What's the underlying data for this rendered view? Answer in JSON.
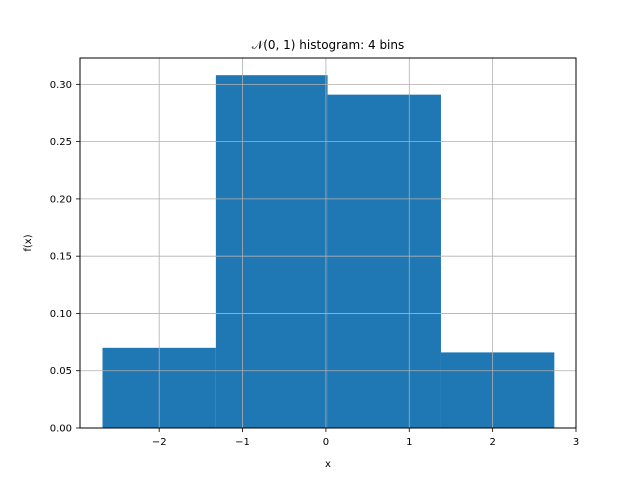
{
  "chart_data": {
    "type": "bar",
    "title": "𝒩(0, 1) histogram: 4 bins",
    "xlabel": "x",
    "ylabel": "f(x)",
    "bins": [
      {
        "x0": -2.68,
        "x1": -1.32,
        "value": 0.07
      },
      {
        "x0": -1.32,
        "x1": 0.02,
        "value": 0.308
      },
      {
        "x0": 0.02,
        "x1": 1.38,
        "value": 0.291
      },
      {
        "x0": 1.38,
        "x1": 2.74,
        "value": 0.066
      }
    ],
    "xlim": [
      -2.95,
      3.0
    ],
    "ylim": [
      0.0,
      0.323
    ],
    "xticks": [
      -2,
      -1,
      0,
      1,
      2,
      3
    ],
    "xtick_labels": [
      "−2",
      "−1",
      "0",
      "1",
      "2",
      "3"
    ],
    "yticks": [
      0.0,
      0.05,
      0.1,
      0.15,
      0.2,
      0.25,
      0.3
    ],
    "ytick_labels": [
      "0.00",
      "0.05",
      "0.10",
      "0.15",
      "0.20",
      "0.25",
      "0.30"
    ],
    "grid": true,
    "colors": {
      "bar": "#1f77b4",
      "grid": "#b0b0b0",
      "axis": "#000000"
    }
  }
}
